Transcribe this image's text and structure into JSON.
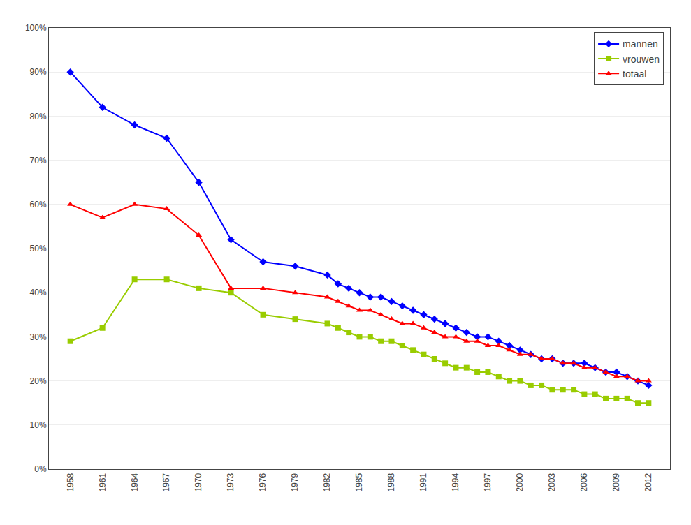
{
  "chart_data": {
    "type": "line",
    "x": [
      1958,
      1961,
      1964,
      1967,
      1970,
      1973,
      1976,
      1979,
      1982,
      1983,
      1984,
      1985,
      1986,
      1987,
      1988,
      1989,
      1990,
      1991,
      1992,
      1993,
      1994,
      1995,
      1996,
      1997,
      1998,
      1999,
      2000,
      2001,
      2002,
      2003,
      2004,
      2005,
      2006,
      2007,
      2008,
      2009,
      2010,
      2011,
      2012
    ],
    "series": [
      {
        "name": "mannen",
        "color": "#0000FF",
        "marker": "diamond",
        "values": [
          0.9,
          0.82,
          0.78,
          0.75,
          0.65,
          0.52,
          0.47,
          0.46,
          0.44,
          0.42,
          0.41,
          0.4,
          0.39,
          0.39,
          0.38,
          0.37,
          0.36,
          0.35,
          0.34,
          0.33,
          0.32,
          0.31,
          0.3,
          0.3,
          0.29,
          0.28,
          0.27,
          0.26,
          0.25,
          0.25,
          0.24,
          0.24,
          0.24,
          0.23,
          0.22,
          0.22,
          0.21,
          0.2,
          0.19
        ]
      },
      {
        "name": "vrouwen",
        "color": "#99CC00",
        "marker": "square",
        "values": [
          0.29,
          0.32,
          0.43,
          0.43,
          0.41,
          0.4,
          0.35,
          0.34,
          0.33,
          0.32,
          0.31,
          0.3,
          0.3,
          0.29,
          0.29,
          0.28,
          0.27,
          0.26,
          0.25,
          0.24,
          0.23,
          0.23,
          0.22,
          0.22,
          0.21,
          0.2,
          0.2,
          0.19,
          0.19,
          0.18,
          0.18,
          0.18,
          0.17,
          0.17,
          0.16,
          0.16,
          0.16,
          0.15,
          0.15
        ]
      },
      {
        "name": "totaal",
        "color": "#FF0000",
        "marker": "triangle-up",
        "values": [
          0.6,
          0.57,
          0.6,
          0.59,
          0.53,
          0.41,
          0.41,
          0.4,
          0.39,
          0.38,
          0.37,
          0.36,
          0.36,
          0.35,
          0.34,
          0.33,
          0.33,
          0.32,
          0.31,
          0.3,
          0.3,
          0.29,
          0.29,
          0.28,
          0.28,
          0.27,
          0.26,
          0.26,
          0.25,
          0.25,
          0.24,
          0.24,
          0.23,
          0.23,
          0.22,
          0.21,
          0.21,
          0.2,
          0.2
        ]
      }
    ],
    "xlim": [
      1956,
      2014
    ],
    "xticks": [
      1958,
      1961,
      1964,
      1967,
      1970,
      1973,
      1976,
      1979,
      1982,
      1985,
      1988,
      1991,
      1994,
      1997,
      2000,
      2003,
      2006,
      2009,
      2012
    ],
    "ylim": [
      0,
      1.0
    ],
    "yticks": [
      {
        "value": 0,
        "label": "0%"
      },
      {
        "value": 0.1,
        "label": "10%"
      },
      {
        "value": 0.2,
        "label": "20%"
      },
      {
        "value": 0.3,
        "label": "30%"
      },
      {
        "value": 0.4,
        "label": "40%"
      },
      {
        "value": 0.5,
        "label": "50%"
      },
      {
        "value": 0.6,
        "label": "60%"
      },
      {
        "value": 0.7,
        "label": "70%"
      },
      {
        "value": 0.8,
        "label": "80%"
      },
      {
        "value": 0.9,
        "label": "90%"
      },
      {
        "value": 1.0,
        "label": "100%"
      }
    ],
    "grid": "y",
    "legend": "upper right"
  }
}
